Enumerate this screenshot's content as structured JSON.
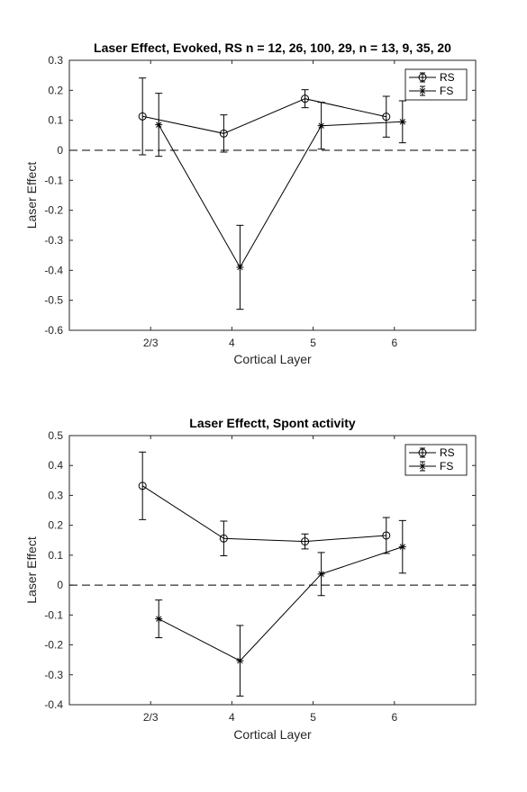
{
  "chart_data": [
    {
      "type": "line",
      "title": "Laser Effect, Evoked, RS n = 12, 26, 100, 29, n = 13, 9, 35, 20",
      "xlabel": "Cortical Layer",
      "ylabel": "Laser Effect",
      "categories": [
        "2/3",
        "4",
        "5",
        "6"
      ],
      "xlim": [
        0,
        5
      ],
      "ylim": [
        -0.6,
        0.3
      ],
      "yticks": [
        -0.6,
        -0.5,
        -0.4,
        -0.3,
        -0.2,
        -0.1,
        0,
        0.1,
        0.2,
        0.3
      ],
      "ytick_labels": [
        "-0.6",
        "-0.5",
        "-0.4",
        "-0.3",
        "-0.2",
        "-0.1",
        "0",
        "0.1",
        "0.2",
        "0.3"
      ],
      "reference_line": 0,
      "legend_position": "top-right",
      "series": [
        {
          "name": "RS",
          "marker": "circle",
          "x": [
            0.9,
            1.9,
            2.9,
            3.9
          ],
          "values": [
            0.113,
            0.056,
            0.172,
            0.112
          ],
          "errors": [
            0.128,
            0.062,
            0.03,
            0.068
          ]
        },
        {
          "name": "FS",
          "marker": "star",
          "x": [
            1.1,
            2.1,
            3.1,
            4.1
          ],
          "values": [
            0.085,
            -0.39,
            0.082,
            0.095
          ],
          "errors": [
            0.105,
            0.14,
            0.078,
            0.07
          ]
        }
      ]
    },
    {
      "type": "line",
      "title": "Laser Effectt, Spont activity",
      "xlabel": "Cortical Layer",
      "ylabel": "Laser Effect",
      "categories": [
        "2/3",
        "4",
        "5",
        "6"
      ],
      "xlim": [
        0,
        5
      ],
      "ylim": [
        -0.4,
        0.5
      ],
      "yticks": [
        -0.4,
        -0.3,
        -0.2,
        -0.1,
        0,
        0.1,
        0.2,
        0.3,
        0.4,
        0.5
      ],
      "ytick_labels": [
        "-0.4",
        "-0.3",
        "-0.2",
        "-0.1",
        "0",
        "0.1",
        "0.2",
        "0.3",
        "0.4",
        "0.5"
      ],
      "reference_line": 0,
      "legend_position": "top-right",
      "series": [
        {
          "name": "RS",
          "marker": "circle",
          "x": [
            0.9,
            1.9,
            2.9,
            3.9
          ],
          "values": [
            0.332,
            0.156,
            0.146,
            0.166
          ],
          "errors": [
            0.113,
            0.058,
            0.025,
            0.06
          ]
        },
        {
          "name": "FS",
          "marker": "star",
          "x": [
            1.1,
            2.1,
            3.1,
            4.1
          ],
          "values": [
            -0.113,
            -0.253,
            0.037,
            0.128
          ],
          "errors": [
            0.063,
            0.118,
            0.072,
            0.088
          ]
        }
      ]
    }
  ]
}
